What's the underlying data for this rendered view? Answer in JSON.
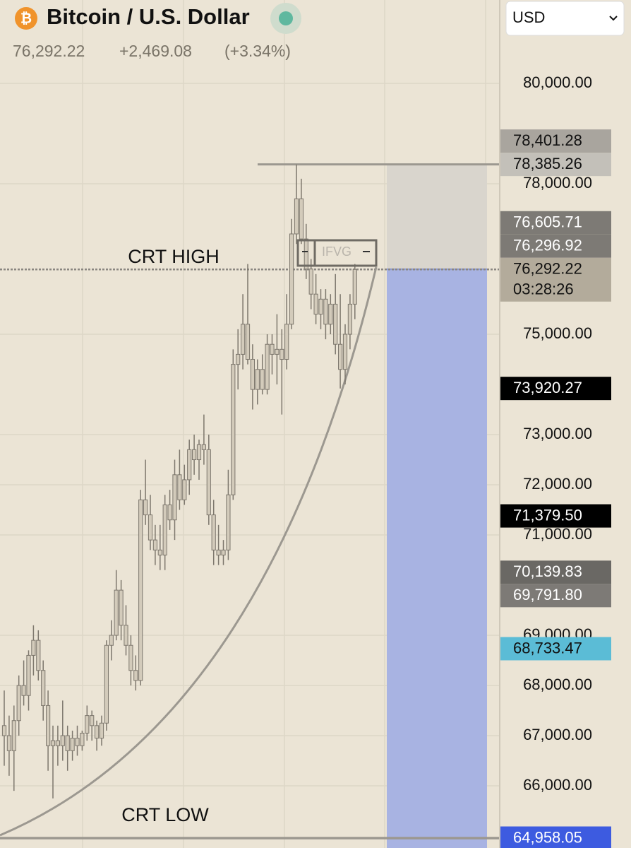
{
  "header": {
    "title": "Bitcoin / U.S. Dollar",
    "price": "76,292.22",
    "change": "+2,469.08",
    "change_pct": "(+3.34%)",
    "currency": "USD"
  },
  "chart_data": {
    "type": "candlestick",
    "ylim": [
      64761,
      81662
    ],
    "yticks": [
      {
        "value": 80000,
        "label": "80,000.00"
      },
      {
        "value": 78000,
        "label": "78,000.00"
      },
      {
        "value": 75000,
        "label": "75,000.00"
      },
      {
        "value": 73000,
        "label": "73,000.00"
      },
      {
        "value": 72000,
        "label": "72,000.00"
      },
      {
        "value": 71000,
        "label": "71,000.00"
      },
      {
        "value": 69000,
        "label": "69,000.00"
      },
      {
        "value": 68000,
        "label": "68,000.00"
      },
      {
        "value": 67000,
        "label": "67,000.00"
      },
      {
        "value": 66000,
        "label": "66,000.00"
      }
    ],
    "grid": true,
    "annotations": {
      "crt_high": "CRT HIGH",
      "crt_low": "CRT LOW",
      "ifvg": "IFVG"
    },
    "price_labels": [
      {
        "value": 78401.28,
        "label": "78,401.28",
        "color": "#a9a59e",
        "text_color": "#111111"
      },
      {
        "value": 78385.26,
        "label": "78,385.26",
        "color": "#c3c0b9",
        "text_color": "#111111"
      },
      {
        "value": 76605.71,
        "label": "76,605.71",
        "color": "#7d7a75",
        "text_color": "#ffffff"
      },
      {
        "value": 76296.92,
        "label": "76,296.92",
        "color": "#7d7a75",
        "text_color": "#ffffff"
      },
      {
        "value": 76292.22,
        "label": "76,292.22",
        "countdown": "03:28:26",
        "color": "#b3ab9b",
        "text_color": "#111111"
      },
      {
        "value": 73920.27,
        "label": "73,920.27",
        "color": "#000000",
        "text_color": "#ffffff"
      },
      {
        "value": 71379.5,
        "label": "71,379.50",
        "color": "#000000",
        "text_color": "#ffffff"
      },
      {
        "value": 70139.83,
        "label": "70,139.83",
        "color": "#6a6864",
        "text_color": "#ffffff"
      },
      {
        "value": 69791.8,
        "label": "69,791.80",
        "color": "#7d7a76",
        "text_color": "#ffffff"
      },
      {
        "value": 68733.47,
        "label": "68,733.47",
        "color": "#5bbcd6",
        "text_color": "#111111"
      },
      {
        "value": 64958.05,
        "label": "64,958.05",
        "color": "#3d5be0",
        "text_color": "#ffffff"
      }
    ],
    "candle_color": "#d3cbbb",
    "candle_edge": "#7d776d",
    "candles": [
      {
        "open": 67200,
        "high": 67900,
        "low": 66400,
        "close": 67000
      },
      {
        "open": 67000,
        "high": 67400,
        "low": 66200,
        "close": 66700
      },
      {
        "open": 66700,
        "high": 67600,
        "low": 65900,
        "close": 67300
      },
      {
        "open": 67300,
        "high": 68200,
        "low": 67000,
        "close": 68000
      },
      {
        "open": 68000,
        "high": 68500,
        "low": 67600,
        "close": 67800
      },
      {
        "open": 67800,
        "high": 68700,
        "low": 67500,
        "close": 68600
      },
      {
        "open": 68600,
        "high": 69200,
        "low": 68200,
        "close": 68900
      },
      {
        "open": 68900,
        "high": 69100,
        "low": 68100,
        "close": 68300
      },
      {
        "open": 68300,
        "high": 68500,
        "low": 67300,
        "close": 67600
      },
      {
        "open": 67600,
        "high": 67900,
        "low": 66300,
        "close": 66800
      },
      {
        "open": 66800,
        "high": 67200,
        "low": 65750,
        "close": 66900
      },
      {
        "open": 66900,
        "high": 67200,
        "low": 66400,
        "close": 66800
      },
      {
        "open": 66800,
        "high": 67700,
        "low": 66500,
        "close": 67000
      },
      {
        "open": 67000,
        "high": 67200,
        "low": 66300,
        "close": 66700
      },
      {
        "open": 66700,
        "high": 67100,
        "low": 66500,
        "close": 66950
      },
      {
        "open": 66950,
        "high": 67200,
        "low": 66600,
        "close": 66800
      },
      {
        "open": 66800,
        "high": 67100,
        "low": 66700,
        "close": 67050
      },
      {
        "open": 67050,
        "high": 67600,
        "low": 66900,
        "close": 67400
      },
      {
        "open": 67400,
        "high": 67500,
        "low": 66900,
        "close": 67200
      },
      {
        "open": 67200,
        "high": 67300,
        "low": 66700,
        "close": 66950
      },
      {
        "open": 66950,
        "high": 67400,
        "low": 66800,
        "close": 67250
      },
      {
        "open": 67250,
        "high": 68900,
        "low": 67100,
        "close": 68800
      },
      {
        "open": 68800,
        "high": 69300,
        "low": 68500,
        "close": 69000
      },
      {
        "open": 69000,
        "high": 70300,
        "low": 68900,
        "close": 69900
      },
      {
        "open": 69900,
        "high": 70100,
        "low": 68900,
        "close": 69200
      },
      {
        "open": 69200,
        "high": 69600,
        "low": 68600,
        "close": 68800
      },
      {
        "open": 68800,
        "high": 69000,
        "low": 68000,
        "close": 68300
      },
      {
        "open": 68300,
        "high": 68600,
        "low": 67900,
        "close": 68100
      },
      {
        "open": 68100,
        "high": 71900,
        "low": 68000,
        "close": 71700
      },
      {
        "open": 71700,
        "high": 72500,
        "low": 71200,
        "close": 71400
      },
      {
        "open": 71400,
        "high": 71800,
        "low": 70700,
        "close": 70900
      },
      {
        "open": 70900,
        "high": 71200,
        "low": 70400,
        "close": 70700
      },
      {
        "open": 70700,
        "high": 71200,
        "low": 70300,
        "close": 70600
      },
      {
        "open": 70600,
        "high": 71800,
        "low": 70300,
        "close": 71600
      },
      {
        "open": 71600,
        "high": 71900,
        "low": 71100,
        "close": 71300
      },
      {
        "open": 71300,
        "high": 72500,
        "low": 70900,
        "close": 72200
      },
      {
        "open": 72200,
        "high": 72700,
        "low": 71500,
        "close": 71700
      },
      {
        "open": 71700,
        "high": 72400,
        "low": 71600,
        "close": 72100
      },
      {
        "open": 72100,
        "high": 72900,
        "low": 71800,
        "close": 72700
      },
      {
        "open": 72700,
        "high": 73000,
        "low": 72200,
        "close": 72500
      },
      {
        "open": 72500,
        "high": 72900,
        "low": 72100,
        "close": 72800
      },
      {
        "open": 72800,
        "high": 73400,
        "low": 72400,
        "close": 72700
      },
      {
        "open": 72700,
        "high": 73000,
        "low": 71200,
        "close": 71400
      },
      {
        "open": 71400,
        "high": 71700,
        "low": 70400,
        "close": 70700
      },
      {
        "open": 70700,
        "high": 71200,
        "low": 70400,
        "close": 70600
      },
      {
        "open": 70600,
        "high": 70900,
        "low": 70400,
        "close": 70700
      },
      {
        "open": 70700,
        "high": 72300,
        "low": 70500,
        "close": 71800
      },
      {
        "open": 71800,
        "high": 74700,
        "low": 71700,
        "close": 74400
      },
      {
        "open": 74400,
        "high": 75100,
        "low": 73900,
        "close": 74600
      },
      {
        "open": 74600,
        "high": 75800,
        "low": 74300,
        "close": 75200
      },
      {
        "open": 75200,
        "high": 76400,
        "low": 74400,
        "close": 74500
      },
      {
        "open": 74500,
        "high": 74800,
        "low": 73500,
        "close": 73900
      },
      {
        "open": 73900,
        "high": 74500,
        "low": 73600,
        "close": 74300
      },
      {
        "open": 74300,
        "high": 74600,
        "low": 73800,
        "close": 73900
      },
      {
        "open": 73900,
        "high": 75000,
        "low": 73800,
        "close": 74800
      },
      {
        "open": 74800,
        "high": 75000,
        "low": 74200,
        "close": 74600
      },
      {
        "open": 74600,
        "high": 75400,
        "low": 74000,
        "close": 74700
      },
      {
        "open": 74700,
        "high": 75100,
        "low": 73400,
        "close": 74500
      },
      {
        "open": 74500,
        "high": 75800,
        "low": 74300,
        "close": 75200
      },
      {
        "open": 75200,
        "high": 77300,
        "low": 75100,
        "close": 77000
      },
      {
        "open": 77000,
        "high": 78385,
        "low": 76800,
        "close": 77700
      },
      {
        "open": 77700,
        "high": 78100,
        "low": 76800,
        "close": 76900
      },
      {
        "open": 76900,
        "high": 77200,
        "low": 76100,
        "close": 76300
      },
      {
        "open": 76300,
        "high": 76500,
        "low": 75500,
        "close": 75800
      },
      {
        "open": 75800,
        "high": 76200,
        "low": 75200,
        "close": 75400
      },
      {
        "open": 75400,
        "high": 75900,
        "low": 75100,
        "close": 75700
      },
      {
        "open": 75700,
        "high": 75900,
        "low": 74900,
        "close": 75200
      },
      {
        "open": 75200,
        "high": 75800,
        "low": 75000,
        "close": 75600
      },
      {
        "open": 75600,
        "high": 76200,
        "low": 74600,
        "close": 74800
      },
      {
        "open": 74800,
        "high": 75800,
        "low": 73920,
        "close": 74300
      },
      {
        "open": 74300,
        "high": 75200,
        "low": 74000,
        "close": 75000
      },
      {
        "open": 75000,
        "high": 75800,
        "low": 74700,
        "close": 75600
      },
      {
        "open": 75600,
        "high": 76400,
        "low": 75300,
        "close": 76292
      }
    ]
  }
}
